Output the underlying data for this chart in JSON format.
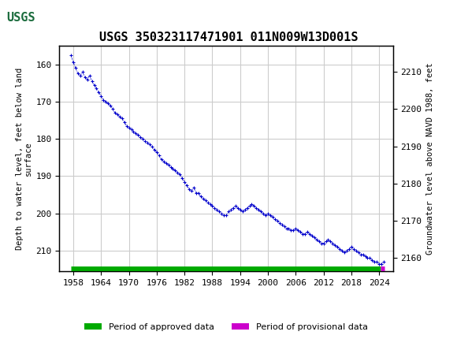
{
  "title": "USGS 350323117471901 011N009W13D001S",
  "ylabel_left": "Depth to water level, feet below land\nsurface",
  "ylabel_right": "Groundwater level above NAVD 1988, feet",
  "usgs_header_color": "#1a6b3c",
  "plot_bg": "#ffffff",
  "grid_color": "#cccccc",
  "line_color": "#0000cc",
  "approved_color": "#00aa00",
  "provisional_color": "#cc00cc",
  "legend_approved": "Period of approved data",
  "legend_provisional": "Period of provisional data",
  "xlim": [
    1955,
    2027
  ],
  "xticks": [
    1958,
    1964,
    1970,
    1976,
    1982,
    1988,
    1994,
    2000,
    2006,
    2012,
    2018,
    2024
  ],
  "ylim_left": [
    215.5,
    155.0
  ],
  "ylim_right": [
    2156.5,
    2217.0
  ],
  "yticks_left": [
    160,
    170,
    180,
    190,
    200,
    210
  ],
  "yticks_right": [
    2160,
    2170,
    2180,
    2190,
    2200,
    2210
  ],
  "data_x": [
    1957.5,
    1958.0,
    1958.5,
    1959.0,
    1959.5,
    1960.0,
    1960.5,
    1961.0,
    1961.5,
    1962.0,
    1962.5,
    1963.0,
    1963.5,
    1964.0,
    1964.5,
    1965.0,
    1965.5,
    1966.0,
    1966.5,
    1967.0,
    1967.5,
    1968.0,
    1968.5,
    1969.0,
    1969.5,
    1970.0,
    1970.5,
    1971.0,
    1971.5,
    1972.0,
    1972.5,
    1973.0,
    1973.5,
    1974.0,
    1974.5,
    1975.0,
    1975.5,
    1976.0,
    1976.5,
    1977.0,
    1977.5,
    1978.0,
    1978.5,
    1979.0,
    1979.5,
    1980.0,
    1980.5,
    1981.0,
    1981.5,
    1982.0,
    1982.5,
    1983.0,
    1983.5,
    1984.0,
    1984.5,
    1985.0,
    1985.5,
    1986.0,
    1986.5,
    1987.0,
    1987.5,
    1988.0,
    1988.5,
    1989.0,
    1989.5,
    1990.0,
    1990.5,
    1991.0,
    1991.5,
    1992.0,
    1992.5,
    1993.0,
    1993.5,
    1994.0,
    1994.5,
    1995.0,
    1995.5,
    1996.0,
    1996.5,
    1997.0,
    1997.5,
    1998.0,
    1998.5,
    1999.0,
    1999.5,
    2000.0,
    2000.5,
    2001.0,
    2001.5,
    2002.0,
    2002.5,
    2003.0,
    2003.5,
    2004.0,
    2004.5,
    2005.0,
    2005.5,
    2006.0,
    2006.5,
    2007.0,
    2007.5,
    2008.0,
    2008.5,
    2009.0,
    2009.5,
    2010.0,
    2010.5,
    2011.0,
    2011.5,
    2012.0,
    2012.5,
    2013.0,
    2013.5,
    2014.0,
    2014.5,
    2015.0,
    2015.5,
    2016.0,
    2016.5,
    2017.0,
    2017.5,
    2018.0,
    2018.5,
    2019.0,
    2019.5,
    2020.0,
    2020.5,
    2021.0,
    2021.5,
    2022.0,
    2022.5,
    2023.0,
    2023.5,
    2024.0,
    2024.5,
    2025.0
  ],
  "data_y": [
    157.5,
    159.5,
    161.0,
    162.5,
    163.0,
    162.0,
    163.5,
    164.0,
    163.0,
    164.5,
    165.5,
    166.5,
    167.5,
    168.5,
    169.5,
    170.0,
    170.5,
    171.0,
    172.0,
    173.0,
    173.5,
    174.0,
    174.5,
    175.5,
    176.5,
    177.0,
    177.5,
    178.0,
    178.5,
    179.0,
    179.5,
    180.0,
    180.5,
    181.0,
    181.5,
    182.0,
    183.0,
    183.5,
    184.5,
    185.5,
    186.0,
    186.5,
    187.0,
    187.5,
    188.0,
    188.5,
    189.0,
    189.5,
    190.5,
    191.5,
    192.5,
    193.5,
    194.0,
    193.0,
    194.5,
    194.5,
    195.5,
    196.0,
    196.5,
    197.0,
    197.5,
    198.0,
    198.5,
    199.0,
    199.5,
    200.0,
    200.5,
    200.5,
    199.5,
    199.0,
    198.5,
    198.0,
    198.5,
    199.0,
    199.5,
    199.0,
    198.5,
    198.0,
    197.5,
    198.0,
    198.5,
    199.0,
    199.5,
    200.0,
    200.5,
    200.0,
    200.5,
    201.0,
    201.5,
    202.0,
    202.5,
    203.0,
    203.5,
    204.0,
    204.0,
    204.5,
    204.5,
    204.0,
    204.5,
    205.0,
    205.5,
    205.5,
    205.0,
    205.5,
    206.0,
    206.5,
    207.0,
    207.5,
    208.0,
    208.0,
    207.5,
    207.0,
    207.5,
    208.0,
    208.5,
    209.0,
    209.5,
    210.0,
    210.5,
    210.0,
    209.5,
    209.0,
    209.5,
    210.0,
    210.5,
    211.0,
    211.0,
    211.5,
    212.0,
    212.0,
    212.5,
    213.0,
    213.0,
    213.5,
    213.5,
    213.0
  ],
  "approved_x_start": 1957.5,
  "approved_x_end": 2024.3,
  "provisional_x_start": 2024.3,
  "provisional_x_end": 2025.1,
  "bar_y": 214.8,
  "figsize": [
    5.8,
    4.3
  ],
  "dpi": 100
}
